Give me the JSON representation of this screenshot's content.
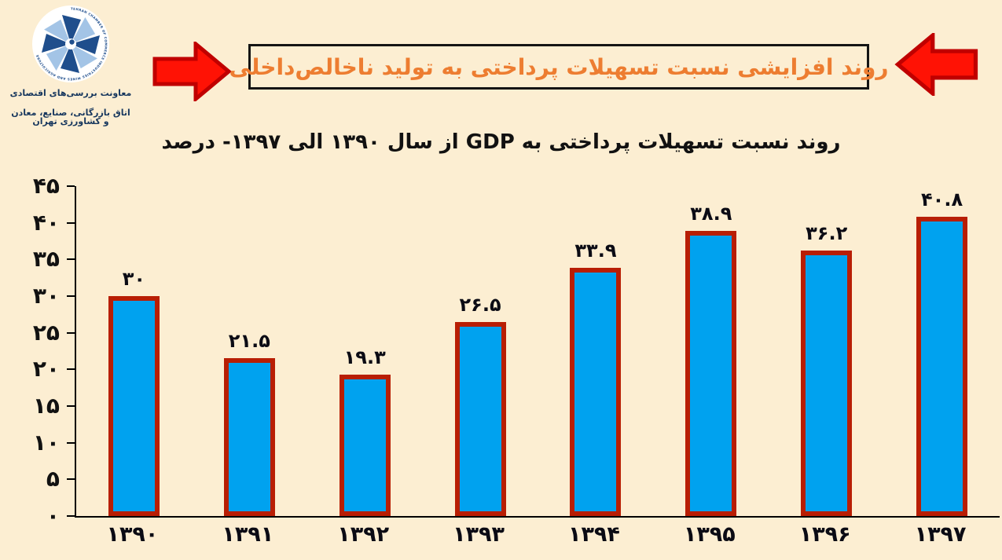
{
  "page": {
    "background": "#FCEED2"
  },
  "logo": {
    "rim_text": "TEHRAN CHAMBER OF COMMERCE INDUSTRIES MINES AND AGRICULTURE",
    "line1": "معاونت بررسی‌های اقتصادی",
    "line2": "اتاق بازرگانی، صنایع، معادن و کشاورزی تهران",
    "dark_blue": "#1F4E8C",
    "light_blue": "#A3C4E6"
  },
  "header": {
    "title": "روند افزایشی نسبت تسهیلات پرداختی به تولید ناخالص‌داخلی",
    "title_color": "#ED7D31",
    "arrow_fill": "#FF1205",
    "arrow_border": "#C00000",
    "subtitle": "روند نسبت تسهیلات پرداختی  به GDP از سال ۱۳۹۰ الی ۱۳۹۷- درصد"
  },
  "chart_data": {
    "type": "bar",
    "title": "روند نسبت تسهیلات پرداختی به GDP از سال ۱۳۹۰ الی ۱۳۹۷ - درصد",
    "categories": [
      "۱۳۹۰",
      "۱۳۹۱",
      "۱۳۹۲",
      "۱۳۹۳",
      "۱۳۹۴",
      "۱۳۹۵",
      "۱۳۹۶",
      "۱۳۹۷"
    ],
    "categories_western": [
      1390,
      1391,
      1392,
      1393,
      1394,
      1395,
      1396,
      1397
    ],
    "values": [
      30,
      21.5,
      19.3,
      26.5,
      33.9,
      38.9,
      36.2,
      40.8
    ],
    "value_labels": [
      "۳۰",
      "۲۱.۵",
      "۱۹.۳",
      "۲۶.۵",
      "۳۳.۹",
      "۳۸.۹",
      "۳۶.۲",
      "۴۰.۸"
    ],
    "xlabel": "",
    "ylabel": "درصد",
    "ylim": [
      0,
      45
    ],
    "grid": false,
    "legend": false,
    "bar_fill": "#00A2EF",
    "bar_border": "#B81E04",
    "yticks": [
      {
        "value": 45,
        "label": "۴۵"
      },
      {
        "value": 40,
        "label": "۴۰"
      },
      {
        "value": 35,
        "label": "۳۵"
      },
      {
        "value": 30,
        "label": "۳۰"
      },
      {
        "value": 25,
        "label": "۲۵"
      },
      {
        "value": 20,
        "label": "۲۰"
      },
      {
        "value": 15,
        "label": "۱۵"
      },
      {
        "value": 10,
        "label": "۱۰"
      },
      {
        "value": 5,
        "label": "۵"
      },
      {
        "value": 0,
        "label": "۰"
      }
    ]
  }
}
